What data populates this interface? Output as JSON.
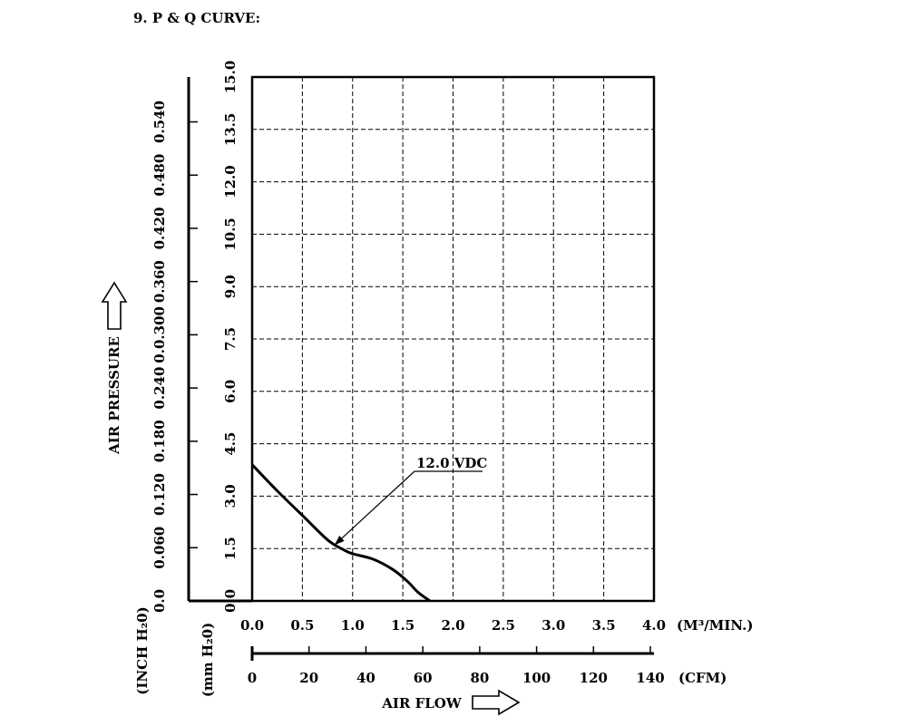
{
  "heading": "9. P & Q CURVE:",
  "chart_data": {
    "type": "line",
    "xlim": [
      0,
      4.0
    ],
    "ylim": [
      0,
      15.0
    ],
    "grid": true,
    "x_ticks": [
      "0.0",
      "0.5",
      "1.0",
      "1.5",
      "2.0",
      "2.5",
      "3.0",
      "3.5",
      "4.0"
    ],
    "x_unit": "(M³/MIN.)",
    "x2_ticks": [
      "0",
      "20",
      "40",
      "60",
      "80",
      "100",
      "120",
      "140"
    ],
    "x2_unit": "(CFM)",
    "x2_values": [
      0,
      20,
      40,
      60,
      80,
      100,
      120,
      140
    ],
    "y_ticks_mm": [
      "0.0",
      "1.5",
      "3.0",
      "4.5",
      "6.0",
      "7.5",
      "9.0",
      "10.5",
      "12.0",
      "13.5",
      "15.0"
    ],
    "y_unit_mm": "(mm H₂0)",
    "y_ticks_inch": [
      "0.0",
      "0.060",
      "0.120",
      "0.180",
      "0.240",
      "0.0.300",
      "0.360",
      "0.420",
      "0.480",
      "0.540"
    ],
    "y_values_inch": [
      0,
      0.06,
      0.12,
      0.18,
      0.24,
      0.3,
      0.36,
      0.42,
      0.48,
      0.54
    ],
    "y_unit_inch": "(INCH H₂0)",
    "ylabel": "AIR PRESSURE",
    "xlabel": "AIR FLOW",
    "series": [
      {
        "name": "12.0 VDC",
        "x": [
          0.0,
          0.25,
          0.5,
          0.75,
          0.9,
          1.0,
          1.2,
          1.4,
          1.55,
          1.65,
          1.77
        ],
        "y": [
          3.9,
          3.15,
          2.45,
          1.75,
          1.48,
          1.35,
          1.2,
          0.9,
          0.55,
          0.25,
          0.0
        ]
      }
    ],
    "annotation": {
      "text": "12.0 VDC",
      "x": 0.82,
      "y": 1.6
    }
  }
}
